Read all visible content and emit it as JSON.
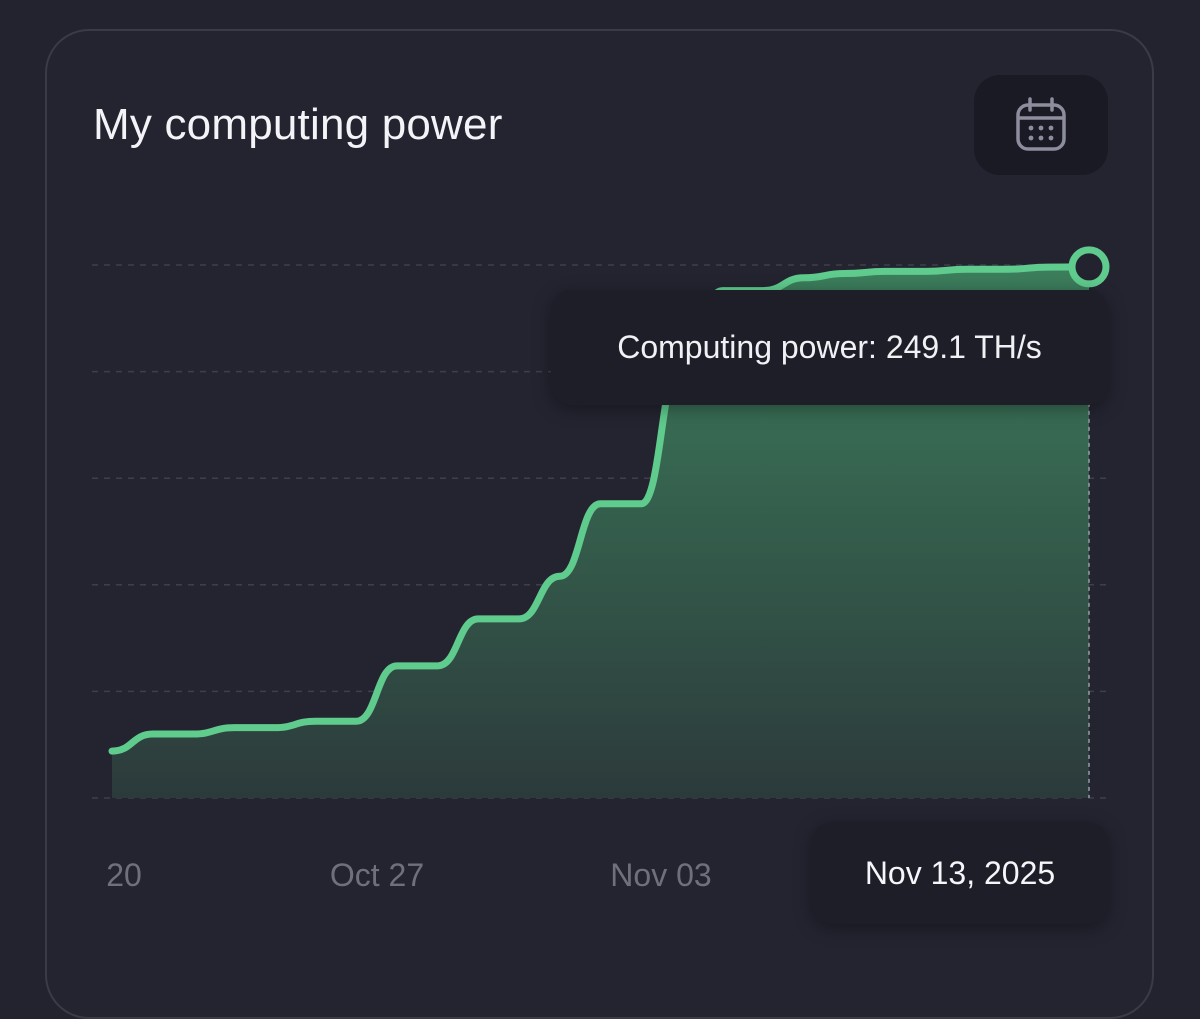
{
  "card": {
    "title": "My computing power"
  },
  "toolbar": {
    "calendar_icon": "calendar-icon"
  },
  "tooltip": {
    "text": "Computing power: 249.1 TH/s"
  },
  "selected_date": "Nov 13, 2025",
  "colors": {
    "line": "#5fcb8d",
    "area_top": "#3a7a5a",
    "area_bottom": "#2e3b3c",
    "grid": "#3e3f4c",
    "background": "#23232f"
  },
  "chart_data": {
    "type": "area",
    "title": "My computing power",
    "x_tick_labels": [
      "20",
      "Oct 27",
      "Nov 03"
    ],
    "x": [
      "Oct 20",
      "Oct 21",
      "Oct 22",
      "Oct 23",
      "Oct 24",
      "Oct 25",
      "Oct 26",
      "Oct 27",
      "Oct 28",
      "Oct 29",
      "Oct 30",
      "Oct 31",
      "Nov 01",
      "Nov 02",
      "Nov 03",
      "Nov 04",
      "Nov 05",
      "Nov 06",
      "Nov 07",
      "Nov 08",
      "Nov 09",
      "Nov 10",
      "Nov 11",
      "Nov 12",
      "Nov 13"
    ],
    "series": [
      {
        "name": "Computing power",
        "unit": "TH/s",
        "values": [
          22,
          30,
          30,
          33,
          33,
          36,
          36,
          62,
          62,
          84,
          84,
          104,
          138,
          138,
          206,
          238,
          238,
          244,
          246,
          247,
          247,
          248,
          248,
          249,
          249.1
        ]
      }
    ],
    "ylim": [
      0,
      250
    ],
    "grid": true,
    "gridlines": 5,
    "highlighted_point": {
      "x": "Nov 13",
      "value": 249.1
    }
  }
}
